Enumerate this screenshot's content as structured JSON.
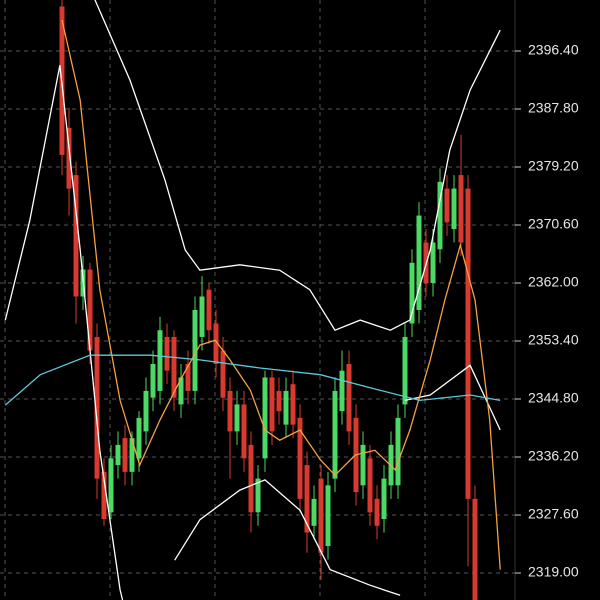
{
  "chart_data": {
    "type": "candlestick",
    "up_color": "#4cd964",
    "down_color": "#d83a2f",
    "open": [
      2403,
      2385,
      2378,
      2360,
      2364,
      2354,
      2334,
      2328,
      2335,
      2339,
      2334,
      2336,
      2340,
      2345,
      2346,
      2354,
      2354,
      2344,
      2350,
      2346,
      2354,
      2361,
      2356,
      2352,
      2346,
      2340,
      2344,
      2338,
      2328,
      2336,
      2348,
      2346,
      2341,
      2347,
      2342,
      2335,
      2326,
      2333,
      2323,
      2333,
      2343,
      2350,
      2342,
      2332,
      2336,
      2330,
      2327,
      2332,
      2332,
      2344,
      2356,
      2358,
      2368,
      2362,
      2367,
      2376,
      2370,
      2378,
      2376,
      2330
    ],
    "high": [
      2404,
      2388,
      2380,
      2366,
      2365,
      2356,
      2336,
      2338,
      2340,
      2341,
      2340,
      2343,
      2348,
      2352,
      2357,
      2356,
      2355,
      2350,
      2352,
      2360,
      2363,
      2362,
      2358,
      2354,
      2348,
      2346,
      2346,
      2340,
      2335,
      2349,
      2349,
      2348,
      2348,
      2349,
      2344,
      2337,
      2332,
      2335,
      2334,
      2348,
      2352,
      2352,
      2344,
      2340,
      2338,
      2332,
      2335,
      2340,
      2344,
      2356,
      2367,
      2374,
      2370,
      2370,
      2379,
      2378,
      2378,
      2384,
      2378,
      2332
    ],
    "low": [
      2378,
      2372,
      2356,
      2358,
      2350,
      2330,
      2326,
      2327,
      2333,
      2332,
      2332,
      2334,
      2338,
      2343,
      2344,
      2347,
      2343,
      2342,
      2344,
      2344,
      2352,
      2353,
      2348,
      2343,
      2333,
      2338,
      2334,
      2325,
      2326,
      2334,
      2338,
      2341,
      2339,
      2339,
      2328,
      2322,
      2324,
      2318,
      2321,
      2331,
      2341,
      2338,
      2329,
      2330,
      2326,
      2324,
      2325,
      2330,
      2330,
      2342,
      2354,
      2356,
      2360,
      2360,
      2365,
      2369,
      2368,
      2366,
      2320,
      2315
    ],
    "close": [
      2381,
      2376,
      2360,
      2364,
      2352,
      2333,
      2327,
      2336,
      2338,
      2334,
      2339,
      2342,
      2346,
      2350,
      2355,
      2349,
      2345,
      2348,
      2346,
      2358,
      2360,
      2355,
      2350,
      2345,
      2340,
      2344,
      2336,
      2328,
      2333,
      2348,
      2340,
      2343,
      2346,
      2341,
      2330,
      2325,
      2330,
      2322,
      2332,
      2346,
      2349,
      2340,
      2331,
      2338,
      2328,
      2326,
      2333,
      2338,
      2342,
      2354,
      2365,
      2372,
      2362,
      2368,
      2377,
      2371,
      2376,
      2368,
      2330,
      2315
    ],
    "lines": [
      {
        "color": "#ffffff",
        "x": [
          -8.1,
          -4.6,
          -0.3,
          2.6,
          5.4,
          8.3,
          9.0
        ],
        "values": [
          2356.5,
          2371.3,
          2394.3,
          2366.9,
          2337.2,
          2316.5,
          2313.5
        ]
      },
      {
        "color": "#ffffff",
        "x": [
          4.7,
          9.7,
          14.7,
          17.6,
          19.7,
          25.4,
          31.1,
          35.4,
          39.0,
          42.6,
          46.9,
          49.7,
          52.6,
          55.4,
          58.3,
          62.6
        ],
        "values": [
          2404.0,
          2392.1,
          2377.3,
          2366.9,
          2363.9,
          2364.7,
          2363.9,
          2361.0,
          2355.0,
          2356.5,
          2355.0,
          2356.5,
          2366.9,
          2381.7,
          2390.6,
          2399.5
        ]
      },
      {
        "color": "#ffffff",
        "x": [
          16.1,
          19.7,
          25.4,
          29.0,
          34.0,
          38.3,
          44.0,
          48.3
        ],
        "values": [
          2320.9,
          2326.9,
          2331.3,
          2332.8,
          2328.3,
          2319.5,
          2317.2,
          2315.7
        ]
      },
      {
        "color": "#ffffff",
        "x": [
          49.0,
          52.6,
          58.3,
          62.6
        ],
        "values": [
          2344.6,
          2345.4,
          2349.8,
          2340.2
        ]
      },
      {
        "color": "#f5a041",
        "x": [
          0,
          2.6,
          5.4,
          8.3,
          11.1,
          14,
          16.9,
          19.7,
          21.9,
          24,
          26.9,
          29,
          31.1,
          34,
          36.9,
          39,
          41.9,
          44.7,
          47.6,
          49.7,
          52.6,
          54.7,
          56.9,
          59,
          61.1,
          62.6
        ],
        "values": [
          2401.0,
          2389.1,
          2361.0,
          2344.6,
          2335.0,
          2341.7,
          2347.6,
          2352.8,
          2353.5,
          2350.6,
          2346.1,
          2340.2,
          2338.7,
          2340.2,
          2335.8,
          2333.5,
          2336.5,
          2337.2,
          2334.3,
          2340.2,
          2350.6,
          2359.5,
          2367.6,
          2359.5,
          2341.7,
          2319.5
        ]
      },
      {
        "color": "#5fc8d8",
        "x": [
          -8.1,
          -3.1,
          4,
          12.6,
          19.7,
          28.3,
          36.9,
          45.4,
          51.1,
          58.3,
          62.6
        ],
        "values": [
          2343.9,
          2348.4,
          2351.3,
          2351.3,
          2350.6,
          2349.4,
          2348.4,
          2346.1,
          2344.6,
          2345.4,
          2344.6
        ]
      }
    ],
    "ylim": [
      2315.0,
      2403.96
    ],
    "yticks": [
      {
        "value": 2396.4,
        "label": "2396.40"
      },
      {
        "value": 2387.8,
        "label": "2387.80"
      },
      {
        "value": 2379.2,
        "label": "2379.20"
      },
      {
        "value": 2370.6,
        "label": "2370.60"
      },
      {
        "value": 2362.0,
        "label": "2362.00"
      },
      {
        "value": 2353.4,
        "label": "2353.40"
      },
      {
        "value": 2344.8,
        "label": "2344.80"
      },
      {
        "value": 2336.2,
        "label": "2336.20"
      },
      {
        "value": 2327.6,
        "label": "2327.60"
      },
      {
        "value": 2319.0,
        "label": "2319.00"
      }
    ],
    "grid": true
  }
}
